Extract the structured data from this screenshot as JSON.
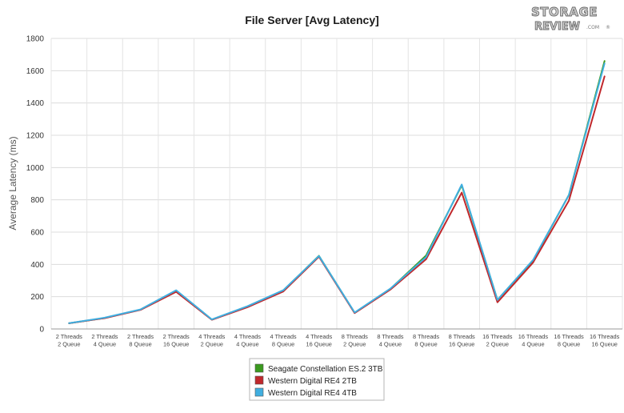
{
  "logo": {
    "line1": "STORAGE",
    "line2": "REVIEW",
    "suffix": ".COM",
    "mark": "®"
  },
  "chart_data": {
    "type": "line",
    "title": "File Server [Avg Latency]",
    "xlabel": "",
    "ylabel": "Average Latency (ms)",
    "ylim": [
      0,
      1800
    ],
    "yticks": [
      0,
      200,
      400,
      600,
      800,
      1000,
      1200,
      1400,
      1600,
      1800
    ],
    "grid": true,
    "legend_position": "bottom",
    "categories": [
      [
        "2 Threads",
        "2 Queue"
      ],
      [
        "2 Threads",
        "4 Queue"
      ],
      [
        "2 Threads",
        "8 Queue"
      ],
      [
        "2 Threads",
        "16 Queue"
      ],
      [
        "4 Threads",
        "2 Queue"
      ],
      [
        "4 Threads",
        "4 Queue"
      ],
      [
        "4 Threads",
        "8 Queue"
      ],
      [
        "4 Threads",
        "16 Queue"
      ],
      [
        "8 Threads",
        "2 Queue"
      ],
      [
        "8 Threads",
        "4 Queue"
      ],
      [
        "8 Threads",
        "8 Queue"
      ],
      [
        "8 Threads",
        "16 Queue"
      ],
      [
        "16 Threads",
        "2 Queue"
      ],
      [
        "16 Threads",
        "4 Queue"
      ],
      [
        "16 Threads",
        "8 Queue"
      ],
      [
        "16 Threads",
        "16 Queue"
      ]
    ],
    "series": [
      {
        "name": "Seagate Constellation ES.2 3TB",
        "color": "#3a9a1e",
        "values": [
          35,
          68,
          120,
          238,
          58,
          140,
          238,
          453,
          100,
          248,
          455,
          890,
          180,
          425,
          830,
          1660
        ]
      },
      {
        "name": "Western Digital RE4 2TB",
        "color": "#c0282c",
        "values": [
          35,
          67,
          118,
          230,
          57,
          135,
          232,
          448,
          98,
          244,
          432,
          845,
          165,
          412,
          795,
          1565
        ]
      },
      {
        "name": "Western Digital RE4 4TB",
        "color": "#40aee0",
        "values": [
          36,
          70,
          121,
          240,
          59,
          141,
          240,
          452,
          102,
          250,
          445,
          895,
          180,
          428,
          830,
          1645
        ]
      }
    ]
  }
}
